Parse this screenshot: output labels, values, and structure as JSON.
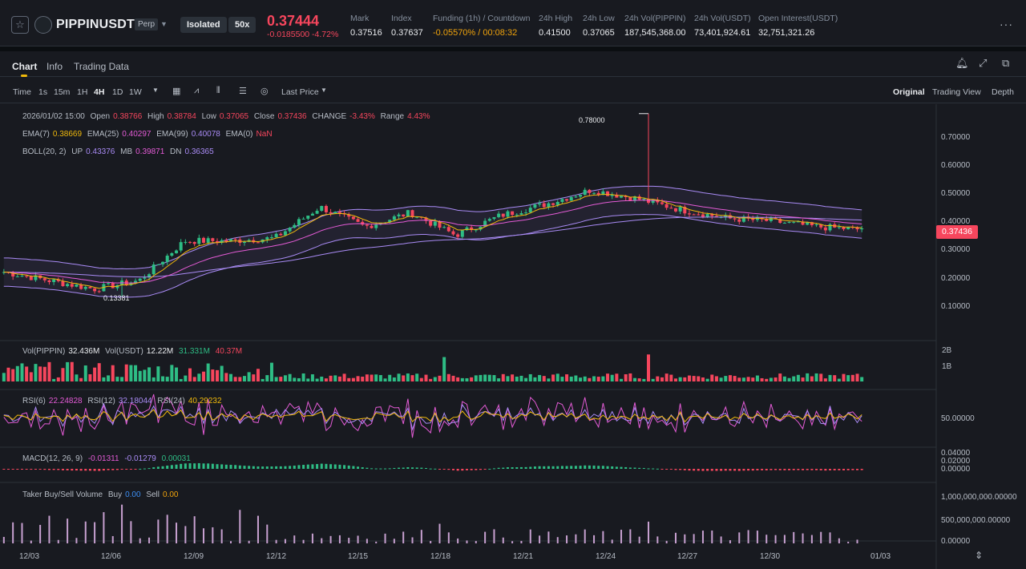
{
  "header": {
    "symbol": "PIPPINUSDT",
    "contract_type": "Perp",
    "margin_mode": "Isolated",
    "leverage": "50x",
    "last_price": "0.37444",
    "change": "-0.0185500 -4.72%",
    "stats": [
      {
        "label": "Mark",
        "value": "0.37516"
      },
      {
        "label": "Index",
        "value": "0.37637"
      },
      {
        "label": "Funding (1h) / Countdown",
        "value": "-0.05570% / 00:08:32"
      },
      {
        "label": "24h High",
        "value": "0.41500"
      },
      {
        "label": "24h Low",
        "value": "0.37065"
      },
      {
        "label": "24h Vol(PIPPIN)",
        "value": "187,545,368.00"
      },
      {
        "label": "24h Vol(USDT)",
        "value": "73,401,924.61"
      },
      {
        "label": "Open Interest(USDT)",
        "value": "32,751,321.26"
      }
    ]
  },
  "tabs": [
    {
      "label": "Chart",
      "active": true
    },
    {
      "label": "Info",
      "active": false
    },
    {
      "label": "Trading Data",
      "active": false
    }
  ],
  "toolbar": {
    "intervals": [
      "Time",
      "1s",
      "15m",
      "1H",
      "4H",
      "1D",
      "1W"
    ],
    "active_interval": "4H",
    "price_type": "Last Price",
    "views": [
      "Original",
      "Trading View",
      "Depth"
    ],
    "active_view": "Original"
  },
  "legends": {
    "ohlc": {
      "date": "2026/01/02 15:00",
      "open_label": "Open",
      "open": "0.38766",
      "high_label": "High",
      "high": "0.38784",
      "low_label": "Low",
      "low": "0.37065",
      "close_label": "Close",
      "close": "0.37436",
      "change_label": "CHANGE",
      "change": "-3.43%",
      "range_label": "Range",
      "range": "4.43%"
    },
    "ema": {
      "ema7_label": "EMA(7)",
      "ema7": "0.38669",
      "ema25_label": "EMA(25)",
      "ema25": "0.40297",
      "ema99_label": "EMA(99)",
      "ema99": "0.40078",
      "ema0_label": "EMA(0)",
      "ema0": "NaN"
    },
    "boll": {
      "label": "BOLL(20, 2)",
      "up_label": "UP",
      "up": "0.43376",
      "mb_label": "MB",
      "mb": "0.39871",
      "dn_label": "DN",
      "dn": "0.36365"
    },
    "vol": {
      "label1": "Vol(PIPPIN)",
      "v1": "32.436M",
      "label2": "Vol(USDT)",
      "v2": "12.22M",
      "v3": "31.331M",
      "v4": "40.37M"
    },
    "rsi": {
      "r6_label": "RSI(6)",
      "r6": "22.24828",
      "r12_label": "RSI(12)",
      "r12": "32.18044",
      "r24_label": "RSI(24)",
      "r24": "40.29232"
    },
    "macd": {
      "label": "MACD(12, 26, 9)",
      "dif": "-0.01311",
      "dea": "-0.01279",
      "hist": "0.00031"
    },
    "taker": {
      "label": "Taker Buy/Sell Volume",
      "buy_label": "Buy",
      "buy": "0.00",
      "sell_label": "Sell",
      "sell": "0.00"
    }
  },
  "annotations": {
    "high_mark": "0.78000",
    "low_mark": "0.13381"
  },
  "current_price_tag": "0.37436",
  "axes": {
    "price_ticks": [
      "0.70000",
      "0.60000",
      "0.50000",
      "0.40000",
      "0.30000",
      "0.20000",
      "0.10000"
    ],
    "vol_ticks": [
      "2B",
      "1B"
    ],
    "rsi_ticks": [
      "50.00000"
    ],
    "macd_ticks": [
      "0.04000",
      "0.02000",
      "0.00000"
    ],
    "taker_ticks": [
      "1,000,000,000.00000",
      "500,000,000.00000",
      "0.00000"
    ],
    "date_ticks": [
      "12/03",
      "12/06",
      "12/09",
      "12/12",
      "12/15",
      "12/18",
      "12/21",
      "12/24",
      "12/27",
      "12/30",
      "01/03"
    ]
  },
  "colors": {
    "up": "#2ebd85",
    "down": "#f6465d",
    "accent": "#f0b90b",
    "ema7": "#f0b90b",
    "ema25": "#e45bd6",
    "ema99": "#a98bf5",
    "boll": "#a98bf5"
  },
  "chart_data": {
    "type": "line",
    "title": "",
    "x_axis": [
      "12/03",
      "12/06",
      "12/09",
      "12/12",
      "12/15",
      "12/18",
      "12/21",
      "12/24",
      "12/27",
      "12/30",
      "01/03"
    ],
    "price_close": [
      0.22,
      0.19,
      0.16,
      0.19,
      0.33,
      0.33,
      0.34,
      0.45,
      0.38,
      0.43,
      0.35,
      0.42,
      0.46,
      0.51,
      0.48,
      0.44,
      0.41,
      0.4,
      0.38,
      0.37
    ],
    "ylim": [
      0.0,
      0.75
    ],
    "high_mark": 0.78,
    "low_mark": 0.13381,
    "last": 0.37436
  }
}
